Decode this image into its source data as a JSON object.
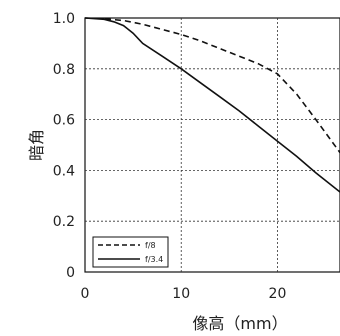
{
  "chart_data": {
    "type": "line",
    "xlabel": "像高（mm）",
    "ylabel": "暗角",
    "xlim": [
      0,
      26.5
    ],
    "ylim": [
      0,
      1.0
    ],
    "x_ticks": [
      "0",
      "10",
      "20"
    ],
    "y_ticks": [
      "0",
      "0.2",
      "0.4",
      "0.6",
      "0.8",
      "1.0"
    ],
    "grid": true,
    "legend_position": "bottom-left",
    "series": [
      {
        "name": "f/8",
        "line_style": "dashed",
        "x": [
          0,
          2,
          4,
          6,
          8,
          10,
          12,
          14,
          16,
          18,
          20,
          22,
          24,
          26.5
        ],
        "y": [
          1.0,
          0.997,
          0.99,
          0.975,
          0.955,
          0.935,
          0.91,
          0.88,
          0.85,
          0.82,
          0.78,
          0.7,
          0.6,
          0.47
        ]
      },
      {
        "name": "f/3.4",
        "line_style": "solid",
        "x": [
          0,
          2,
          3,
          4,
          5,
          6,
          8,
          10,
          12,
          14,
          16,
          18,
          20,
          22,
          24,
          26.5
        ],
        "y": [
          1.0,
          0.995,
          0.985,
          0.97,
          0.94,
          0.9,
          0.85,
          0.8,
          0.745,
          0.69,
          0.635,
          0.575,
          0.515,
          0.455,
          0.39,
          0.315
        ]
      }
    ],
    "colors": {
      "line": "#111111",
      "grid": "#333333",
      "axis": "#111111"
    }
  }
}
